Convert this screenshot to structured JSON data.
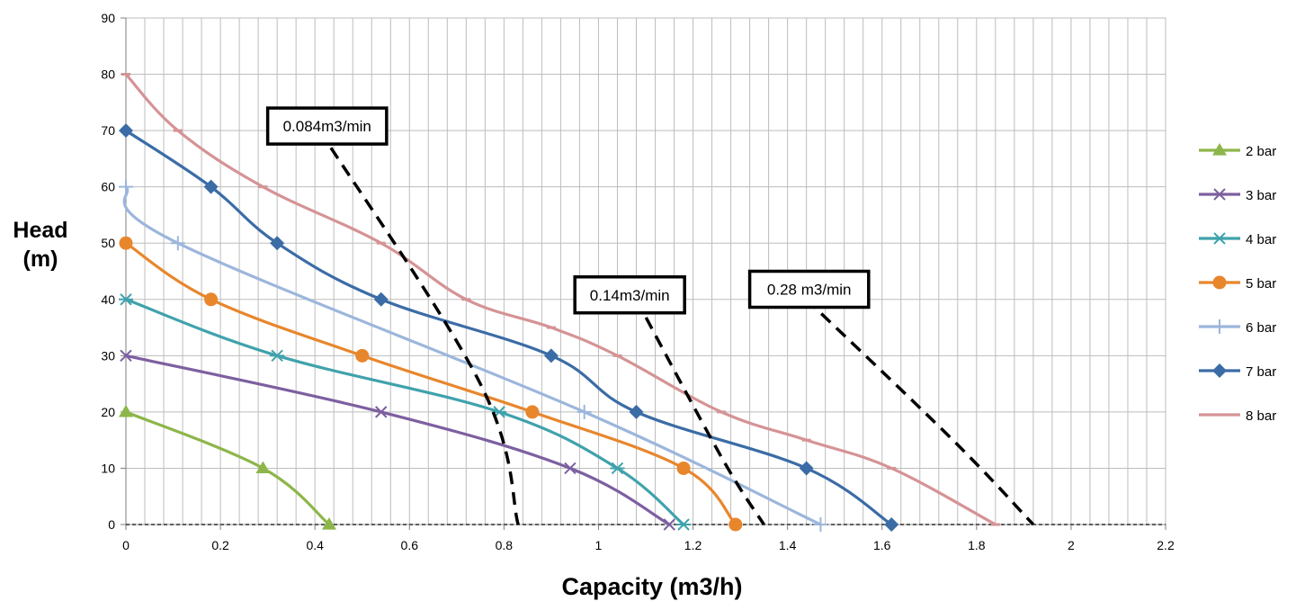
{
  "chart_data": {
    "type": "line",
    "xlabel": "Capacity (m3/h)",
    "ylabel_lines": [
      "Head",
      "(m)"
    ],
    "xlim": [
      0,
      2.2
    ],
    "ylim": [
      0,
      90
    ],
    "xticks": [
      0,
      0.2,
      0.4,
      0.6,
      0.8,
      1,
      1.2,
      1.4,
      1.6,
      1.8,
      2,
      2.2
    ],
    "xtick_labels": [
      "0",
      "0.2",
      "0.4",
      "0.6",
      "0.8",
      "1",
      "1.2",
      "1.4",
      "1.6",
      "1.8",
      "2",
      "2.2"
    ],
    "yticks": [
      0,
      10,
      20,
      30,
      40,
      50,
      60,
      70,
      80,
      90
    ],
    "ytick_labels": [
      "0",
      "10",
      "20",
      "30",
      "40",
      "50",
      "60",
      "70",
      "80",
      "90"
    ],
    "grid": true,
    "legend_position": "right",
    "series": [
      {
        "name": "2 bar",
        "color": "#8DB64A",
        "marker": "triangle",
        "x": [
          0,
          0.29,
          0.43
        ],
        "y": [
          20,
          10,
          0
        ]
      },
      {
        "name": "3 bar",
        "color": "#7D5FA0",
        "marker": "x",
        "x": [
          0,
          0.54,
          0.94,
          1.15
        ],
        "y": [
          30,
          20,
          10,
          0
        ]
      },
      {
        "name": "4 bar",
        "color": "#3FA2AC",
        "marker": "asterisk",
        "x": [
          0,
          0.32,
          0.79,
          1.04,
          1.18
        ],
        "y": [
          40,
          30,
          20,
          10,
          0
        ]
      },
      {
        "name": "5 bar",
        "color": "#E8862C",
        "marker": "circle",
        "x": [
          0,
          0.18,
          0.5,
          0.86,
          1.18,
          1.29
        ],
        "y": [
          50,
          40,
          30,
          20,
          10,
          0
        ]
      },
      {
        "name": "6 bar",
        "color": "#9CB6DC",
        "marker": "plus",
        "x": [
          0,
          0.11,
          0.97,
          1.47
        ],
        "y": [
          60,
          50,
          20,
          0
        ]
      },
      {
        "name": "7 bar",
        "color": "#3B6CA6",
        "marker": "diamond",
        "x": [
          0,
          0.18,
          0.32,
          0.54,
          0.9,
          1.08,
          1.44,
          1.62
        ],
        "y": [
          70,
          60,
          50,
          40,
          30,
          20,
          10,
          0
        ]
      },
      {
        "name": "8 bar",
        "color": "#D59395",
        "marker": "dash",
        "x": [
          0,
          0.11,
          0.29,
          0.54,
          0.72,
          0.9,
          1.04,
          1.26,
          1.44,
          1.62,
          1.84
        ],
        "y": [
          80,
          70,
          60,
          50,
          40,
          35,
          30,
          20,
          15,
          10,
          0
        ]
      }
    ],
    "reference_lines": [
      {
        "x": [
          0.41,
          0.75,
          0.83
        ],
        "y": [
          70,
          25,
          0
        ]
      },
      {
        "x": [
          1.08,
          1.26,
          1.35
        ],
        "y": [
          40,
          12,
          0
        ]
      },
      {
        "x": [
          1.44,
          1.75,
          1.92
        ],
        "y": [
          40,
          15,
          0
        ]
      }
    ],
    "annotations": [
      {
        "text": "0.084m3/min",
        "x": 0.3,
        "y": 74
      },
      {
        "text": "0.14m3/min",
        "x": 0.95,
        "y": 44
      },
      {
        "text": "0.28 m3/min",
        "x": 1.32,
        "y": 45
      }
    ]
  }
}
